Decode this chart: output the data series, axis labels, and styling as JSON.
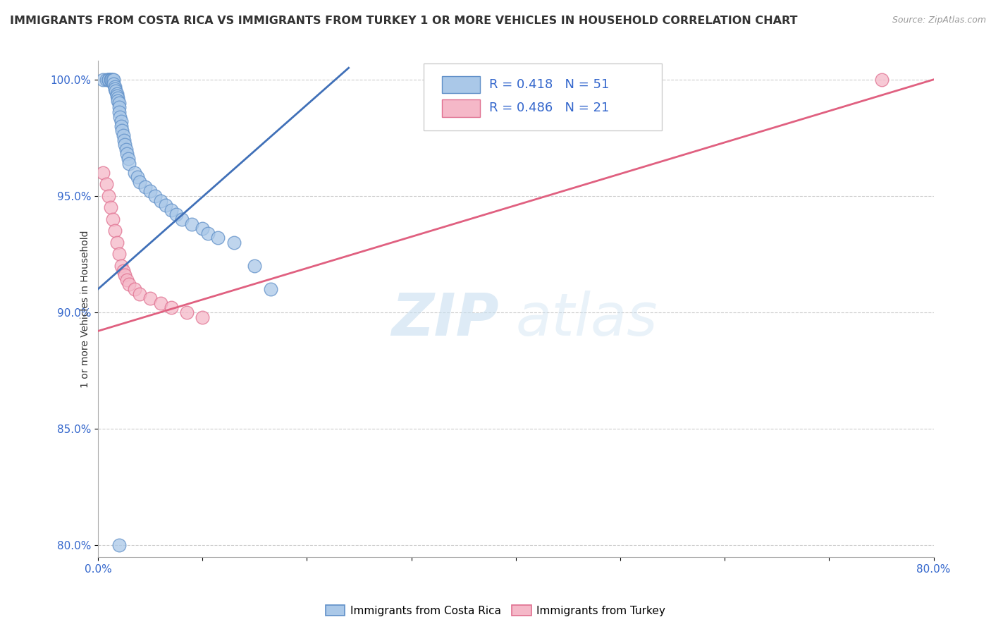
{
  "title": "IMMIGRANTS FROM COSTA RICA VS IMMIGRANTS FROM TURKEY 1 OR MORE VEHICLES IN HOUSEHOLD CORRELATION CHART",
  "source": "Source: ZipAtlas.com",
  "ylabel": "1 or more Vehicles in Household",
  "xmin": 0.0,
  "xmax": 0.8,
  "ymin": 0.795,
  "ymax": 1.008,
  "ytick_vals": [
    0.8,
    0.85,
    0.9,
    0.95,
    1.0
  ],
  "xtick_vals": [
    0.0,
    0.1,
    0.2,
    0.3,
    0.4,
    0.5,
    0.6,
    0.7,
    0.8
  ],
  "legend_R_blue": "0.418",
  "legend_N_blue": "51",
  "legend_R_pink": "0.486",
  "legend_N_pink": "21",
  "blue_scatter_color": "#aac8e8",
  "blue_edge_color": "#6090c8",
  "pink_scatter_color": "#f5b8c8",
  "pink_edge_color": "#e07090",
  "blue_line_color": "#4070b8",
  "pink_line_color": "#e06080",
  "scatter_blue_x": [
    0.005,
    0.008,
    0.01,
    0.01,
    0.01,
    0.012,
    0.012,
    0.013,
    0.014,
    0.015,
    0.015,
    0.016,
    0.016,
    0.017,
    0.018,
    0.018,
    0.019,
    0.019,
    0.02,
    0.02,
    0.02,
    0.021,
    0.022,
    0.022,
    0.023,
    0.024,
    0.025,
    0.026,
    0.027,
    0.028,
    0.029,
    0.03,
    0.035,
    0.038,
    0.04,
    0.045,
    0.05,
    0.055,
    0.06,
    0.065,
    0.07,
    0.075,
    0.08,
    0.09,
    0.1,
    0.105,
    0.115,
    0.13,
    0.15,
    0.165,
    0.02
  ],
  "scatter_blue_y": [
    1.0,
    1.0,
    1.0,
    1.0,
    1.0,
    1.0,
    1.0,
    1.0,
    1.0,
    1.0,
    0.998,
    0.997,
    0.996,
    0.995,
    0.994,
    0.993,
    0.992,
    0.991,
    0.99,
    0.988,
    0.986,
    0.984,
    0.982,
    0.98,
    0.978,
    0.976,
    0.974,
    0.972,
    0.97,
    0.968,
    0.966,
    0.964,
    0.96,
    0.958,
    0.956,
    0.954,
    0.952,
    0.95,
    0.948,
    0.946,
    0.944,
    0.942,
    0.94,
    0.938,
    0.936,
    0.934,
    0.932,
    0.93,
    0.92,
    0.91,
    0.8
  ],
  "scatter_pink_x": [
    0.005,
    0.008,
    0.01,
    0.012,
    0.014,
    0.016,
    0.018,
    0.02,
    0.022,
    0.024,
    0.026,
    0.028,
    0.03,
    0.035,
    0.04,
    0.05,
    0.06,
    0.07,
    0.085,
    0.1,
    0.75
  ],
  "scatter_pink_y": [
    0.96,
    0.955,
    0.95,
    0.945,
    0.94,
    0.935,
    0.93,
    0.925,
    0.92,
    0.918,
    0.916,
    0.914,
    0.912,
    0.91,
    0.908,
    0.906,
    0.904,
    0.902,
    0.9,
    0.898,
    1.0
  ],
  "blue_trend_x": [
    0.0,
    0.24
  ],
  "blue_trend_y": [
    0.91,
    1.005
  ],
  "pink_trend_x": [
    0.0,
    0.8
  ],
  "pink_trend_y": [
    0.892,
    1.0
  ],
  "watermark_zip": "ZIP",
  "watermark_atlas": "atlas",
  "background_color": "#ffffff",
  "grid_color": "#cccccc",
  "text_color": "#3366cc",
  "axis_color": "#aaaaaa",
  "title_color": "#333333",
  "source_color": "#999999"
}
